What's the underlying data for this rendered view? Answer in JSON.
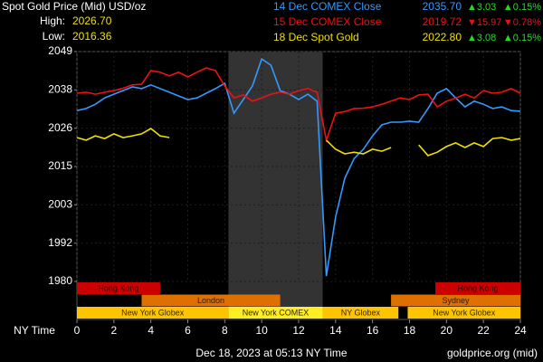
{
  "chart_data": {
    "type": "line",
    "title": "Spot Gold Price (Mid) USD/oz",
    "high": {
      "label": "High:",
      "value": "2026.70"
    },
    "low": {
      "label": "Low:",
      "value": "2016.36"
    },
    "xlabel": "NY Time",
    "footer": "Dec 18, 2023 at 05:13 NY Time",
    "source": "goldprice.org (mid)",
    "grid": true,
    "xlim": [
      0,
      24
    ],
    "xticks": [
      0,
      2,
      4,
      6,
      8,
      10,
      12,
      14,
      16,
      18,
      20,
      22,
      24
    ],
    "ylim": [
      1980,
      2049
    ],
    "yticks": [
      2049,
      {
        "value": 2037.5,
        "label": "2038"
      },
      2026,
      {
        "value": 2014.5,
        "label": "2015"
      },
      2003,
      {
        "value": 1991.5,
        "label": "1992"
      },
      1980
    ],
    "x": [
      0,
      0.5,
      1,
      1.5,
      2,
      2.5,
      3,
      3.5,
      4,
      4.5,
      5,
      5.5,
      6,
      6.5,
      7,
      7.5,
      8,
      8.5,
      9,
      9.5,
      10,
      10.5,
      11,
      11.5,
      12,
      12.5,
      13,
      13.5,
      14,
      14.5,
      15,
      15.5,
      16,
      16.5,
      17,
      17.5,
      18,
      18.5,
      19,
      19.5,
      20,
      20.5,
      21,
      21.5,
      22,
      22.5,
      23,
      23.5,
      24
    ],
    "series": [
      {
        "name": "14 Dec COMEX Close",
        "color": "#3399ff",
        "close": "2035.70",
        "change": "▲3.03",
        "change_color": "#22dd22",
        "pct": "▲0.15%",
        "pct_color": "#22dd22",
        "values": [
          2031.3,
          2031.9,
          2033.2,
          2035.1,
          2036.2,
          2037.3,
          2038.4,
          2037.9,
          2039.0,
          2037.9,
          2036.8,
          2035.7,
          2034.6,
          2035.1,
          2036.5,
          2037.9,
          2039.5,
          2030.5,
          2034.6,
          2038.7,
          2046.8,
          2044.9,
          2037.3,
          2036.2,
          2034.6,
          2036.2,
          2034.1,
          1981.6,
          1999.3,
          2011.0,
          2016.9,
          2019.7,
          2023.7,
          2027.0,
          2027.8,
          2027.8,
          2028.1,
          2027.8,
          2031.9,
          2036.5,
          2037.9,
          2035.1,
          2032.4,
          2034.1,
          2033.2,
          2031.9,
          2032.4,
          2031.3,
          2031.1
        ]
      },
      {
        "name": "15 Dec COMEX Close",
        "color": "#ee1111",
        "close": "2019.72",
        "change": "▼15.97",
        "change_color": "#ee1111",
        "pct": "▼0.78%",
        "pct_color": "#ee1111",
        "values": [
          2036.5,
          2036.8,
          2036.2,
          2036.8,
          2037.3,
          2038.0,
          2039.0,
          2039.2,
          2043.3,
          2042.8,
          2041.7,
          2042.8,
          2041.4,
          2042.8,
          2044.1,
          2043.3,
          2038.7,
          2035.1,
          2036.0,
          2034.1,
          2035.1,
          2036.2,
          2036.8,
          2036.2,
          2037.3,
          2037.9,
          2036.8,
          2022.4,
          2030.5,
          2031.0,
          2031.9,
          2032.0,
          2032.4,
          2033.2,
          2034.1,
          2035.1,
          2034.6,
          2036.0,
          2036.2,
          2032.4,
          2034.1,
          2035.0,
          2036.2,
          2035.1,
          2037.3,
          2036.5,
          2036.8,
          2037.9,
          2036.5
        ]
      },
      {
        "name": "18 Dec Spot Gold",
        "color": "#f0e000",
        "close": "2022.80",
        "change": "▲3.08",
        "change_color": "#22dd22",
        "pct": "▲0.15%",
        "pct_color": "#22dd22",
        "values": [
          2023.2,
          2022.4,
          2023.7,
          2022.9,
          2024.3,
          2023.2,
          2023.7,
          2024.3,
          2025.9,
          2023.7,
          2023.2,
          null,
          null,
          null,
          null,
          null,
          null,
          null,
          null,
          null,
          null,
          null,
          null,
          null,
          null,
          null,
          null,
          2022.4,
          2019.7,
          2018.3,
          2018.8,
          2018.3,
          2019.7,
          2019.1,
          2020.2,
          null,
          null,
          2021.0,
          2017.8,
          2018.8,
          2020.5,
          2021.6,
          2020.2,
          2021.6,
          2020.5,
          2022.9,
          2023.2,
          2022.4,
          2022.9
        ]
      }
    ],
    "sessions": [
      {
        "label": "Hong Kong",
        "start": 0,
        "end": 4.5,
        "row": 0,
        "color": "#cc0000",
        "text_color": "#330000"
      },
      {
        "label": "Hong Kong",
        "start": 19.4,
        "end": 24,
        "row": 0,
        "color": "#cc0000",
        "text_color": "#330000"
      },
      {
        "label": "London",
        "start": 3.5,
        "end": 11,
        "row": 1,
        "color": "#dd7000",
        "text_color": "#331800"
      },
      {
        "label": "Sydney",
        "start": 17,
        "end": 24,
        "row": 1,
        "color": "#dd7000",
        "text_color": "#331800"
      },
      {
        "label": "New York Globex",
        "start": 0,
        "end": 8.2,
        "row": 2,
        "color": "#ffc400",
        "text_color": "#332800"
      },
      {
        "label": "New York COMEX",
        "start": 8.2,
        "end": 13.3,
        "row": 2,
        "color": "#ffee22",
        "text_color": "#332800",
        "shade": true
      },
      {
        "label": "NY Globex",
        "start": 13.3,
        "end": 17.4,
        "row": 2,
        "color": "#ffc400",
        "text_color": "#332800"
      },
      {
        "label": "New York Globex",
        "start": 17.9,
        "end": 24,
        "row": 2,
        "color": "#ffc400",
        "text_color": "#332800"
      }
    ]
  }
}
